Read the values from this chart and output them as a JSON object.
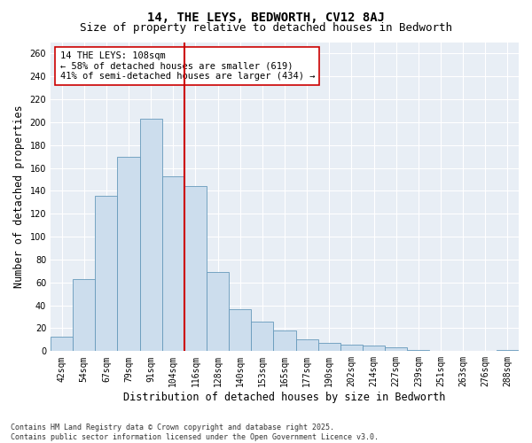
{
  "title1": "14, THE LEYS, BEDWORTH, CV12 8AJ",
  "title2": "Size of property relative to detached houses in Bedworth",
  "xlabel": "Distribution of detached houses by size in Bedworth",
  "ylabel": "Number of detached properties",
  "categories": [
    "42sqm",
    "54sqm",
    "67sqm",
    "79sqm",
    "91sqm",
    "104sqm",
    "116sqm",
    "128sqm",
    "140sqm",
    "153sqm",
    "165sqm",
    "177sqm",
    "190sqm",
    "202sqm",
    "214sqm",
    "227sqm",
    "239sqm",
    "251sqm",
    "263sqm",
    "276sqm",
    "288sqm"
  ],
  "values": [
    13,
    63,
    136,
    170,
    203,
    153,
    144,
    69,
    37,
    26,
    18,
    10,
    7,
    6,
    5,
    3,
    1,
    0,
    0,
    0,
    1
  ],
  "bar_color": "#ccdded",
  "bar_edge_color": "#6699bb",
  "vline_color": "#cc0000",
  "annotation_text": "14 THE LEYS: 108sqm\n← 58% of detached houses are smaller (619)\n41% of semi-detached houses are larger (434) →",
  "annotation_box_color": "#ffffff",
  "annotation_box_edge": "#cc0000",
  "ylim": [
    0,
    270
  ],
  "yticks": [
    0,
    20,
    40,
    60,
    80,
    100,
    120,
    140,
    160,
    180,
    200,
    220,
    240,
    260
  ],
  "footnote": "Contains HM Land Registry data © Crown copyright and database right 2025.\nContains public sector information licensed under the Open Government Licence v3.0.",
  "bg_color": "#ffffff",
  "plot_bg_color": "#e8eef5",
  "grid_color": "#ffffff",
  "title_fontsize": 10,
  "subtitle_fontsize": 9,
  "tick_fontsize": 7,
  "label_fontsize": 8.5,
  "annot_fontsize": 7.5,
  "footnote_fontsize": 6
}
